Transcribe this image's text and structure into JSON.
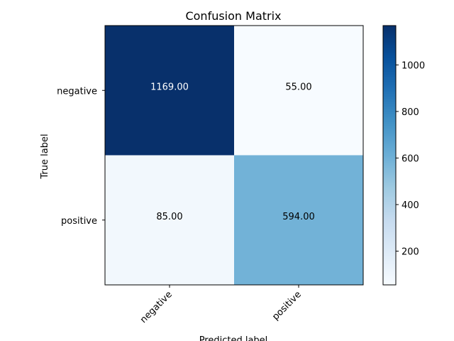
{
  "chart_data": {
    "type": "heatmap",
    "title": "Confusion Matrix",
    "xlabel": "Predicted label",
    "ylabel": "True label",
    "x_categories": [
      "negative",
      "positive"
    ],
    "y_categories": [
      "negative",
      "positive"
    ],
    "values": [
      [
        1169,
        55
      ],
      [
        85,
        594
      ]
    ],
    "cell_labels": [
      [
        "1169.00",
        "55.00"
      ],
      [
        "85.00",
        "594.00"
      ]
    ],
    "colormap": "Blues",
    "colorbar": {
      "range": [
        55,
        1169
      ],
      "ticks": [
        200,
        400,
        600,
        800,
        1000
      ],
      "tick_labels": [
        "200",
        "400",
        "600",
        "800",
        "1000"
      ]
    },
    "grid": false,
    "x_tick_rotation_deg": 45
  }
}
